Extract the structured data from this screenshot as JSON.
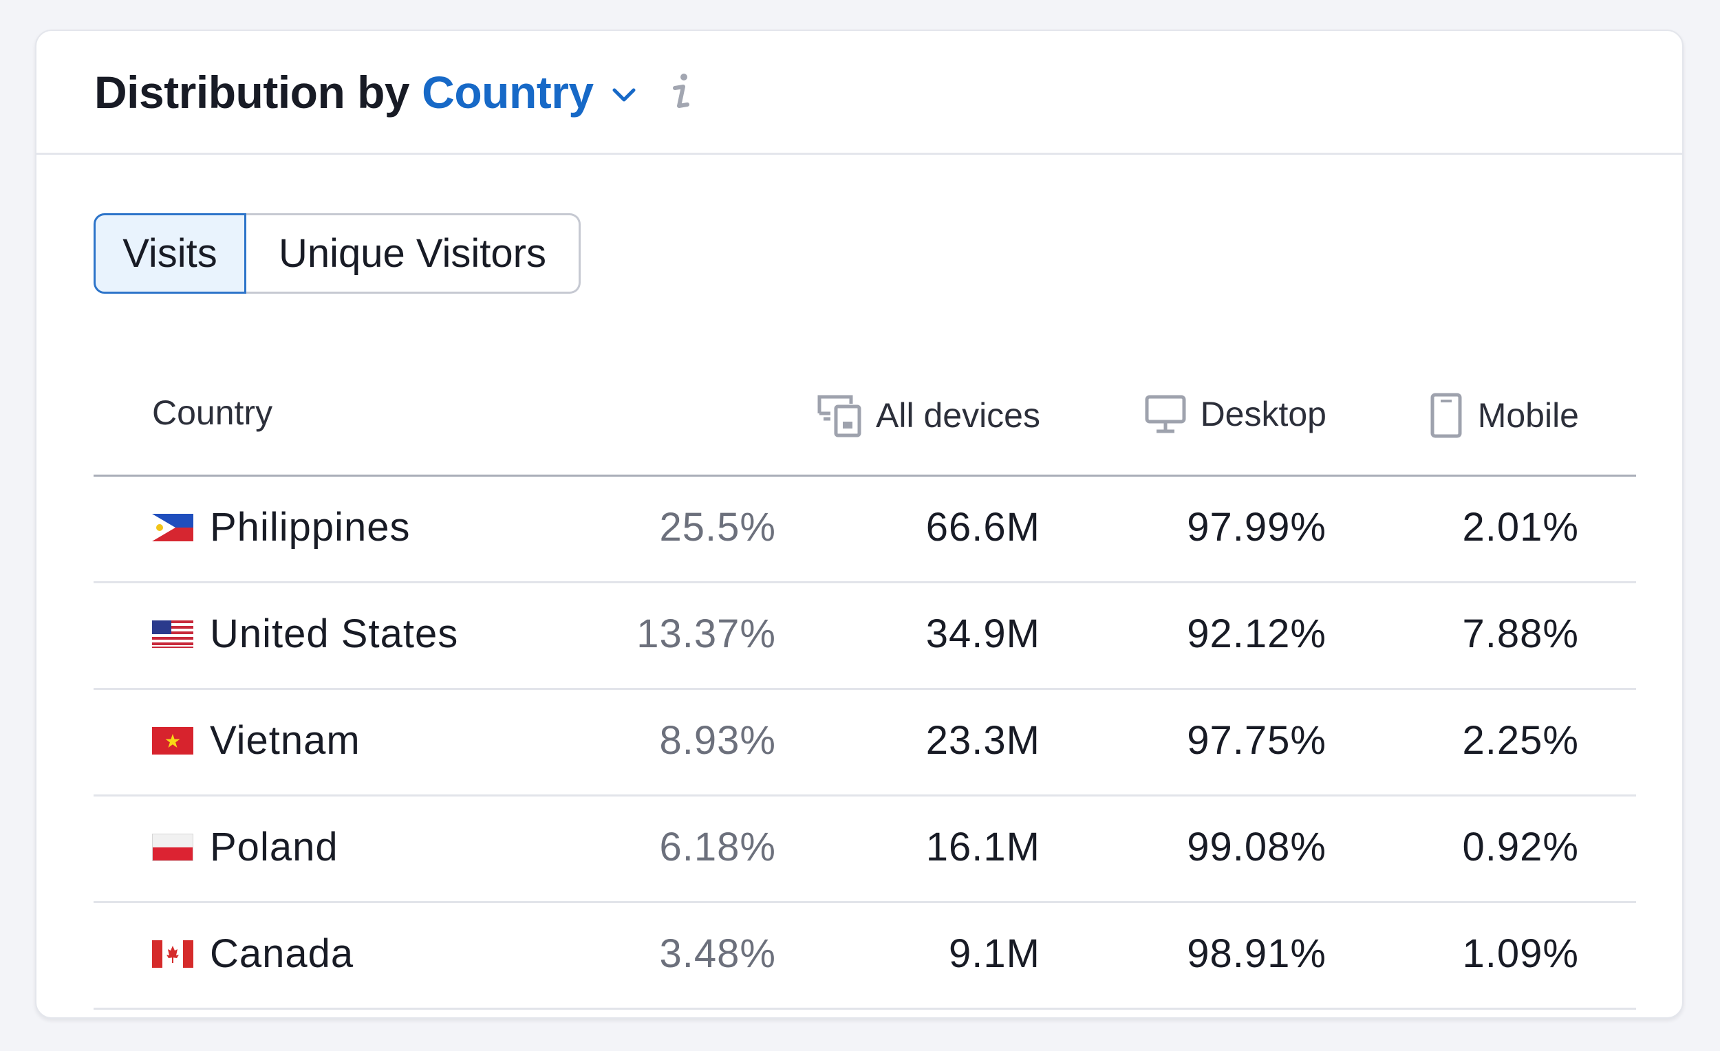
{
  "header": {
    "title_prefix": "Distribution by",
    "title_dropdown": "Country",
    "accent_color": "#1769c7"
  },
  "toggle": {
    "options": [
      "Visits",
      "Unique Visitors"
    ],
    "selected": "Visits"
  },
  "table": {
    "columns": {
      "country": "Country",
      "all_devices": "All devices",
      "desktop": "Desktop",
      "mobile": "Mobile"
    },
    "rows": [
      {
        "country": "Philippines",
        "flag": "ph",
        "share": "25.5%",
        "all_devices": "66.6M",
        "desktop": "97.99%",
        "mobile": "2.01%"
      },
      {
        "country": "United States",
        "flag": "us",
        "share": "13.37%",
        "all_devices": "34.9M",
        "desktop": "92.12%",
        "mobile": "7.88%"
      },
      {
        "country": "Vietnam",
        "flag": "vn",
        "share": "8.93%",
        "all_devices": "23.3M",
        "desktop": "97.75%",
        "mobile": "2.25%"
      },
      {
        "country": "Poland",
        "flag": "pl",
        "share": "6.18%",
        "all_devices": "16.1M",
        "desktop": "99.08%",
        "mobile": "0.92%"
      },
      {
        "country": "Canada",
        "flag": "ca",
        "share": "3.48%",
        "all_devices": "9.1M",
        "desktop": "98.91%",
        "mobile": "1.09%"
      }
    ]
  },
  "icons": {
    "dropdown": "chevron-down-icon",
    "info": "info-icon",
    "all_devices": "devices-icon",
    "desktop": "desktop-icon",
    "mobile": "mobile-icon"
  }
}
